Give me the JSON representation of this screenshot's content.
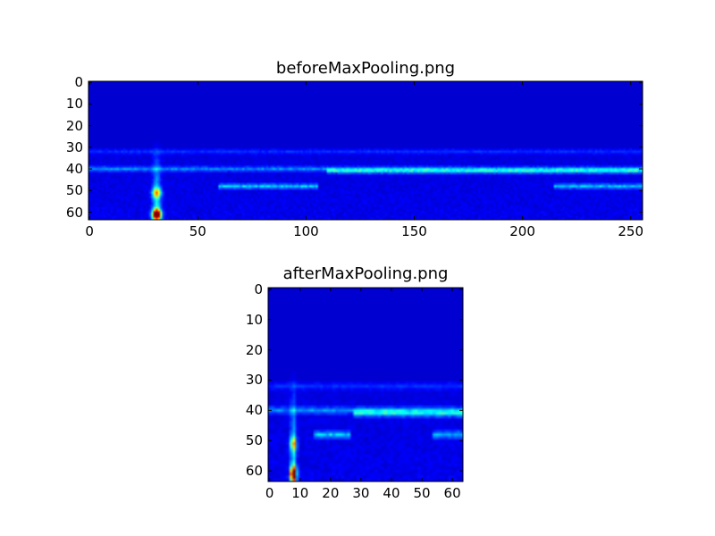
{
  "chart_data": [
    {
      "type": "heatmap",
      "title": "beforeMaxPooling.png",
      "colormap": "jet",
      "xlim": [
        0,
        256
      ],
      "ylim": [
        64,
        0
      ],
      "xticks": [
        0,
        50,
        100,
        150,
        200,
        250
      ],
      "yticks": [
        0,
        10,
        20,
        30,
        40,
        50,
        60
      ],
      "grid": false,
      "image_size": [
        256,
        64
      ],
      "features": [
        {
          "kind": "background",
          "value": 0.03
        },
        {
          "kind": "vertical-streak",
          "x": 31,
          "y_from": 26,
          "y_to": 64,
          "value": 0.35
        },
        {
          "kind": "peak",
          "x": 31,
          "y": 61,
          "value": 1.0
        },
        {
          "kind": "peak",
          "x": 31,
          "y": 51,
          "value": 0.5
        },
        {
          "kind": "horizontal-band",
          "y": 40,
          "x_from": 0,
          "x_to": 256,
          "value": 0.22
        },
        {
          "kind": "horizontal-band",
          "y": 41,
          "x_from": 110,
          "x_to": 256,
          "value": 0.3
        },
        {
          "kind": "horizontal-band",
          "y": 48,
          "x_from": 60,
          "x_to": 105,
          "value": 0.3
        },
        {
          "kind": "horizontal-band",
          "y": 48,
          "x_from": 215,
          "x_to": 256,
          "value": 0.28
        },
        {
          "kind": "horizontal-band",
          "y": 32,
          "x_from": 0,
          "x_to": 256,
          "value": 0.1
        }
      ]
    },
    {
      "type": "heatmap",
      "title": "afterMaxPooling.png",
      "colormap": "jet",
      "xlim": [
        0,
        64
      ],
      "ylim": [
        64,
        0
      ],
      "xticks": [
        0,
        10,
        20,
        30,
        40,
        50,
        60
      ],
      "yticks": [
        0,
        10,
        20,
        30,
        40,
        50,
        60
      ],
      "grid": false,
      "image_size": [
        64,
        64
      ],
      "features": [
        {
          "kind": "background",
          "value": 0.03
        },
        {
          "kind": "vertical-streak",
          "x": 7.75,
          "y_from": 26,
          "y_to": 64,
          "value": 0.35
        },
        {
          "kind": "peak",
          "x": 7.75,
          "y": 61,
          "value": 1.0
        },
        {
          "kind": "peak",
          "x": 7.75,
          "y": 51,
          "value": 0.5
        },
        {
          "kind": "horizontal-band",
          "y": 40,
          "x_from": 0,
          "x_to": 64,
          "value": 0.22
        },
        {
          "kind": "horizontal-band",
          "y": 41,
          "x_from": 27.5,
          "x_to": 64,
          "value": 0.3
        },
        {
          "kind": "horizontal-band",
          "y": 48,
          "x_from": 15,
          "x_to": 26,
          "value": 0.3
        },
        {
          "kind": "horizontal-band",
          "y": 48,
          "x_from": 54,
          "x_to": 64,
          "value": 0.28
        },
        {
          "kind": "horizontal-band",
          "y": 32,
          "x_from": 0,
          "x_to": 64,
          "value": 0.1
        }
      ]
    }
  ]
}
